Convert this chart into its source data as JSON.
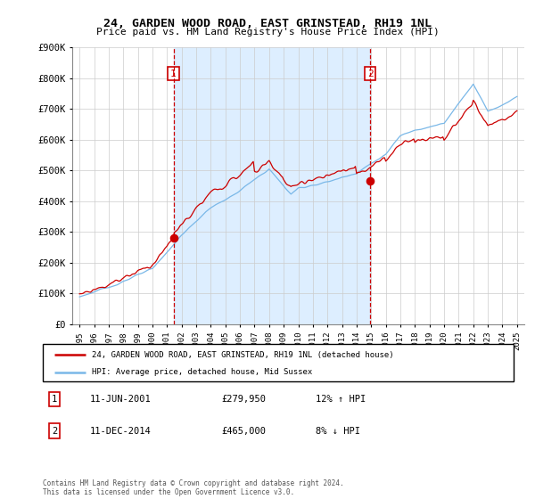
{
  "title": "24, GARDEN WOOD ROAD, EAST GRINSTEAD, RH19 1NL",
  "subtitle": "Price paid vs. HM Land Registry's House Price Index (HPI)",
  "legend_line1": "24, GARDEN WOOD ROAD, EAST GRINSTEAD, RH19 1NL (detached house)",
  "legend_line2": "HPI: Average price, detached house, Mid Sussex",
  "annotation1_label": "1",
  "annotation1_date": "11-JUN-2001",
  "annotation1_price": "£279,950",
  "annotation1_hpi": "12% ↑ HPI",
  "annotation2_label": "2",
  "annotation2_date": "11-DEC-2014",
  "annotation2_price": "£465,000",
  "annotation2_hpi": "8% ↓ HPI",
  "footnote": "Contains HM Land Registry data © Crown copyright and database right 2024.\nThis data is licensed under the Open Government Licence v3.0.",
  "sale1_x": 2001.44,
  "sale1_y": 279950,
  "sale2_x": 2014.94,
  "sale2_y": 465000,
  "hpi_color": "#7ab8e8",
  "price_color": "#cc0000",
  "vline_color": "#cc0000",
  "shade_color": "#ddeeff",
  "background_color": "#ffffff",
  "grid_color": "#cccccc",
  "ylim_min": 0,
  "ylim_max": 900000,
  "xlim_min": 1994.5,
  "xlim_max": 2025.5,
  "yticks": [
    0,
    100000,
    200000,
    300000,
    400000,
    500000,
    600000,
    700000,
    800000,
    900000
  ],
  "ytick_labels": [
    "£0",
    "£100K",
    "£200K",
    "£300K",
    "£400K",
    "£500K",
    "£600K",
    "£700K",
    "£800K",
    "£900K"
  ]
}
